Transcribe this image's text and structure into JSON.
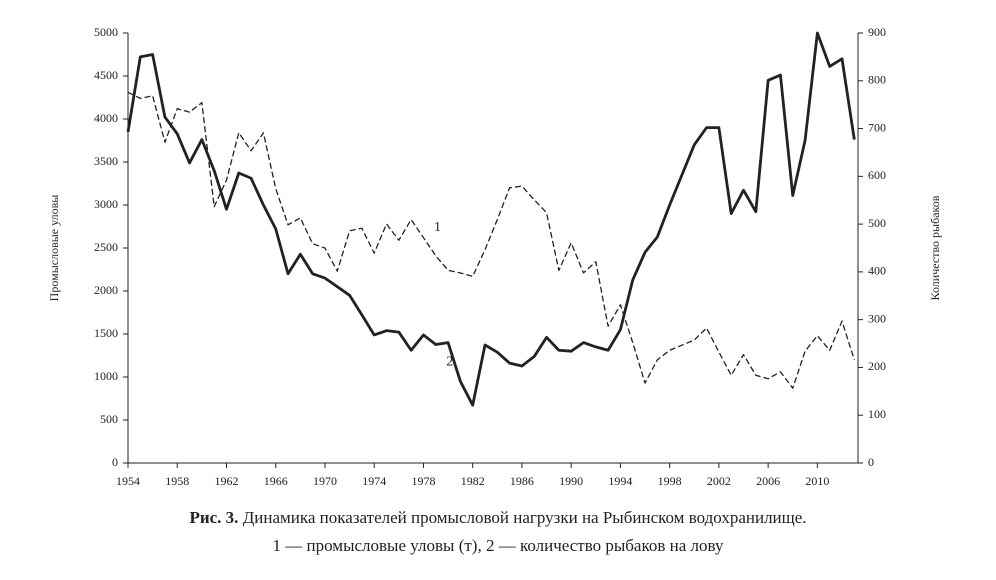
{
  "chart_data": {
    "type": "line",
    "figure_label": "Рис. 3.",
    "title": "Динамика показателей промысловой нагрузки на Рыбинском водохранилище.",
    "subtitle": "1 — промысловые уловы (т), 2 — количество рыбаков на лову",
    "ylabel": "Промысловые уловы",
    "y2label": "Количество рыбаков",
    "x": [
      1954,
      1955,
      1956,
      1957,
      1958,
      1959,
      1960,
      1961,
      1962,
      1963,
      1964,
      1965,
      1966,
      1967,
      1968,
      1969,
      1970,
      1971,
      1972,
      1973,
      1974,
      1975,
      1976,
      1977,
      1978,
      1979,
      1980,
      1981,
      1982,
      1983,
      1984,
      1985,
      1986,
      1987,
      1988,
      1989,
      1990,
      1991,
      1992,
      1993,
      1994,
      1995,
      1996,
      1997,
      1998,
      1999,
      2000,
      2001,
      2002,
      2003,
      2004,
      2005,
      2006,
      2007,
      2008,
      2009,
      2010,
      2011,
      2012,
      2013
    ],
    "xlim": [
      1954,
      2013.3
    ],
    "xticks": [
      1954,
      1958,
      1962,
      1966,
      1970,
      1974,
      1978,
      1982,
      1986,
      1990,
      1994,
      1998,
      2002,
      2006,
      2010
    ],
    "ylim": [
      0,
      5000
    ],
    "yticks": [
      0,
      500,
      1000,
      1500,
      2000,
      2500,
      3000,
      3500,
      4000,
      4500,
      5000
    ],
    "y2lim": [
      0,
      900
    ],
    "y2ticks": [
      0,
      100,
      200,
      300,
      400,
      500,
      600,
      700,
      800,
      900
    ],
    "series": [
      {
        "name": "1",
        "color": "#222",
        "style": "dashed",
        "axis": "y",
        "label_at": 1978,
        "values": [
          4310,
          4240,
          4270,
          3730,
          4120,
          4080,
          4190,
          2980,
          3290,
          3840,
          3630,
          3840,
          3190,
          2770,
          2850,
          2550,
          2500,
          2230,
          2700,
          2730,
          2440,
          2780,
          2590,
          2830,
          2620,
          2410,
          2240,
          2210,
          2170,
          2480,
          2830,
          3200,
          3220,
          3060,
          2910,
          2240,
          2560,
          2210,
          2340,
          1590,
          1840,
          1400,
          930,
          1200,
          1310,
          1370,
          1430,
          1570,
          1290,
          1020,
          1260,
          1020,
          980,
          1060,
          870,
          1300,
          1480,
          1310,
          1650,
          1200
        ]
      },
      {
        "name": "2",
        "color": "#222",
        "style": "solid",
        "axis": "y2",
        "label_at": 1979,
        "values": [
          693,
          850,
          855,
          724,
          689,
          628,
          677,
          612,
          531,
          607,
          596,
          540,
          490,
          396,
          437,
          396,
          387,
          369,
          351,
          310,
          268,
          277,
          274,
          236,
          268,
          248,
          252,
          171,
          121,
          247,
          232,
          209,
          203,
          223,
          263,
          236,
          234,
          252,
          243,
          236,
          279,
          383,
          441,
          473,
          540,
          603,
          666,
          702,
          702,
          522,
          571,
          526,
          801,
          812,
          560,
          675,
          900,
          830,
          846,
          677
        ]
      }
    ]
  }
}
